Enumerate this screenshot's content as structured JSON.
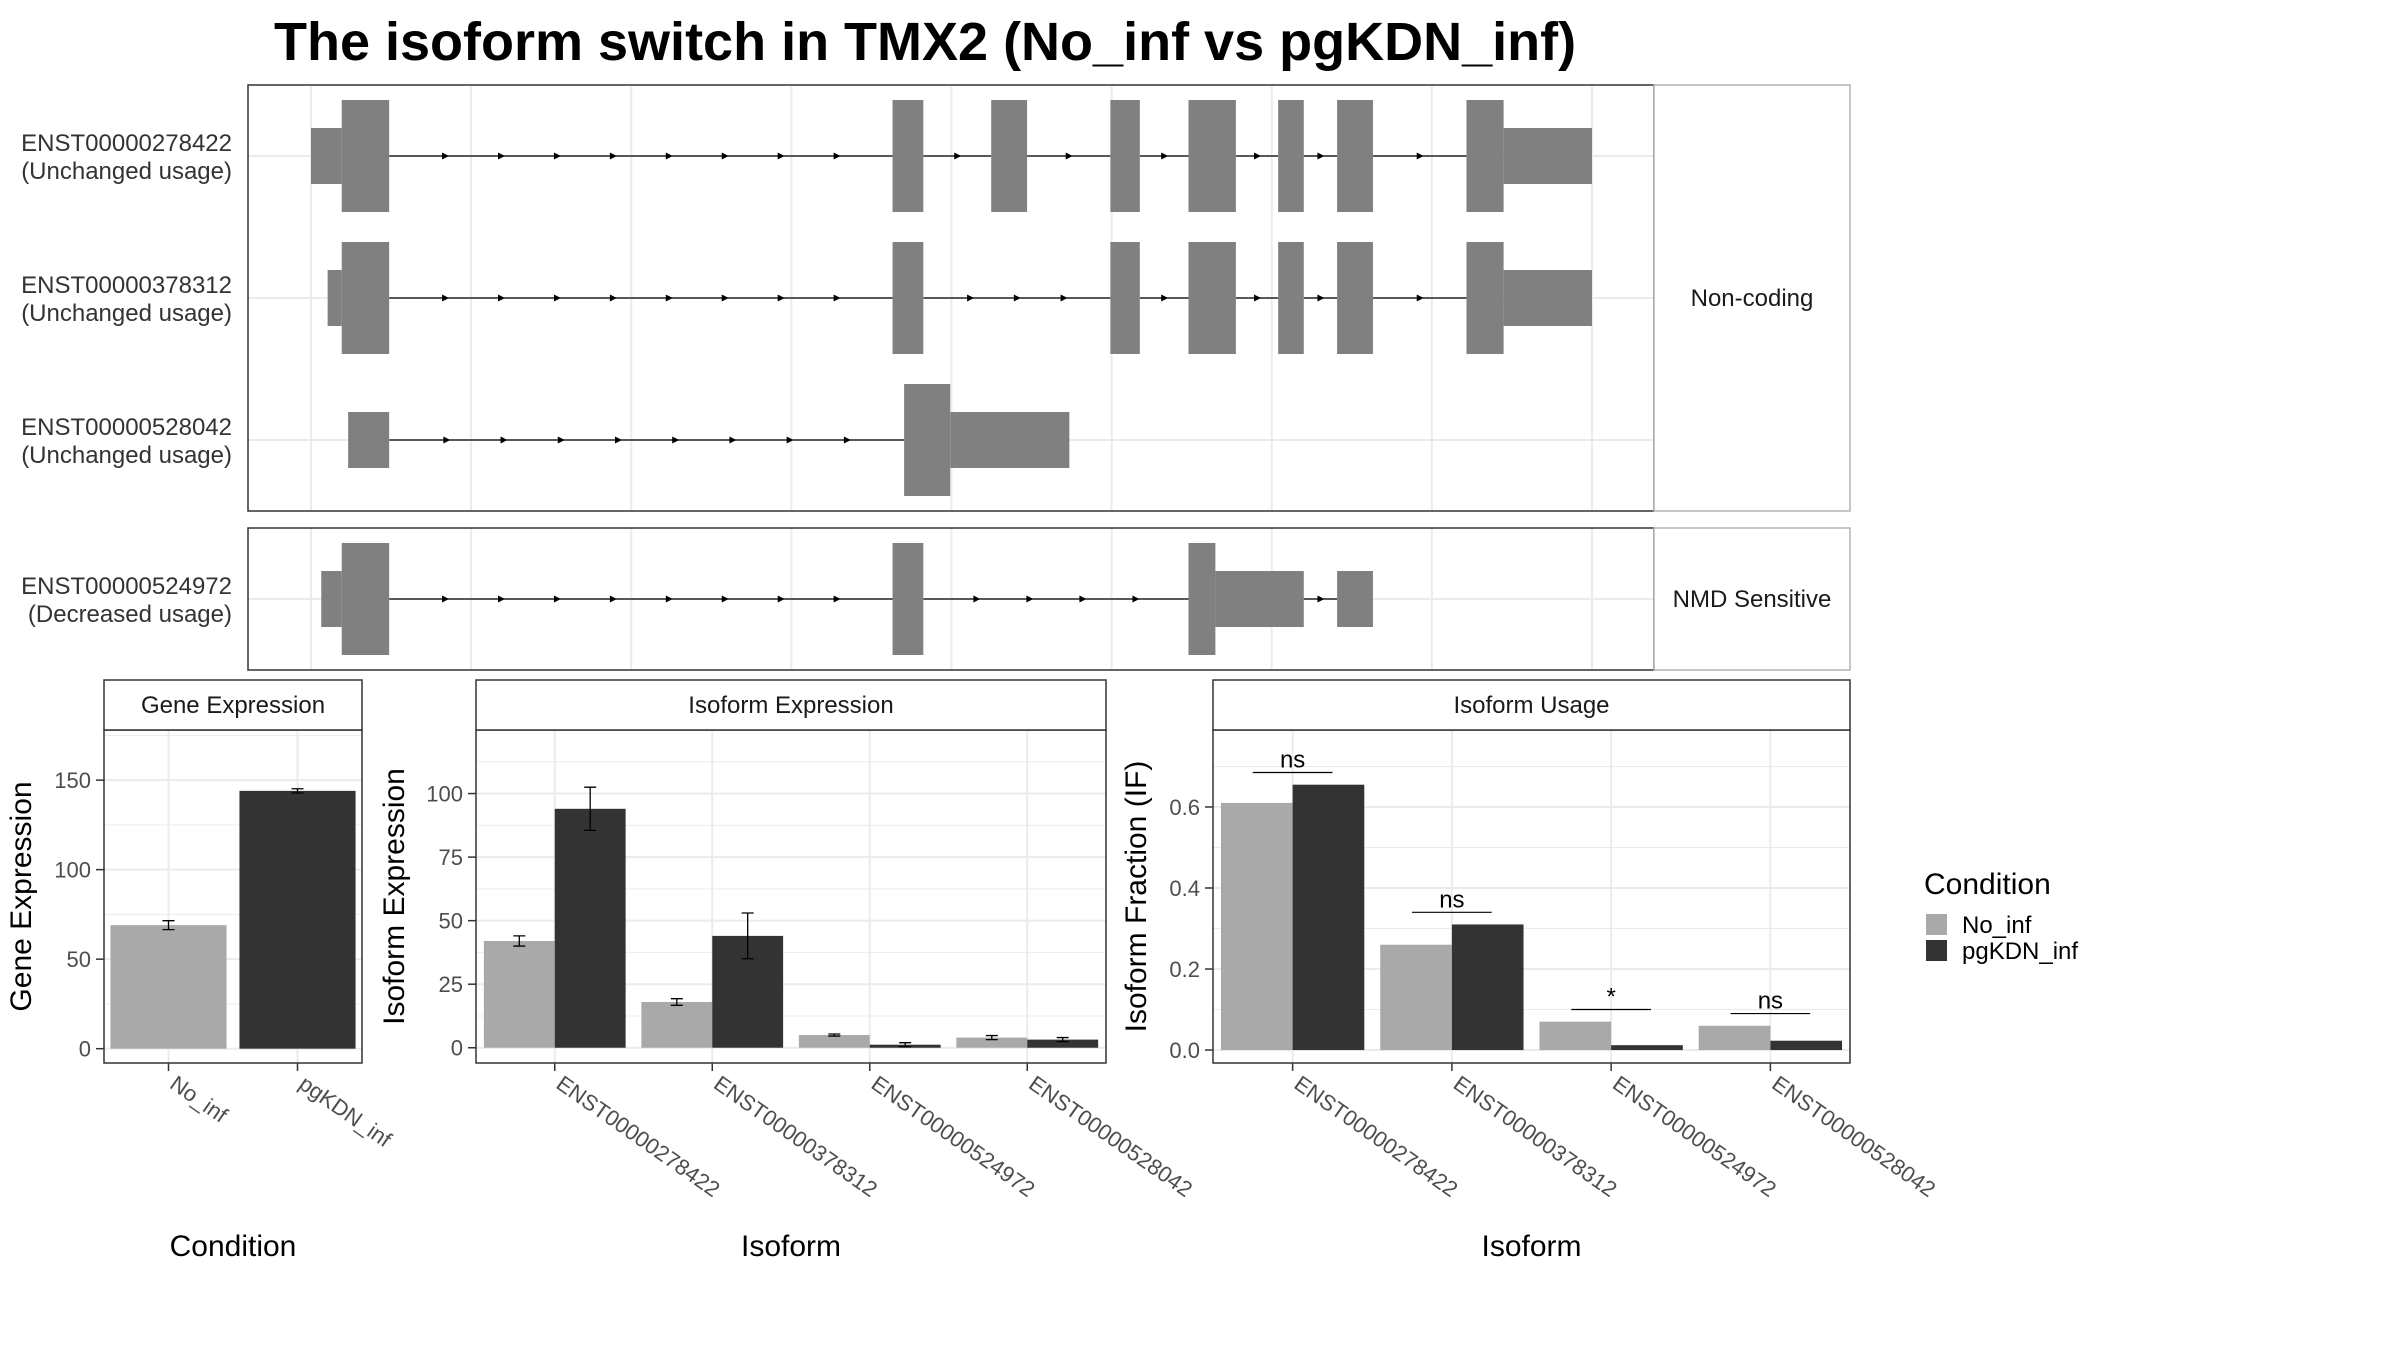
{
  "title": "The isoform switch in TMX2 (No_inf vs pgKDN_inf)",
  "colors": {
    "exon": "#808080",
    "no_inf": "#a9a9a9",
    "pgkdn_inf": "#333333",
    "grid": "#ebebeb",
    "panel_border": "#333333",
    "strip_border": "#b3b3b3"
  },
  "structure": {
    "coord_range": [
      0,
      1000
    ],
    "groups": [
      {
        "label": "Non-coding",
        "transcripts": [
          {
            "id": "ENST00000278422",
            "usage": "(Unchanged usage)",
            "exons": [
              {
                "start": 0,
                "end": 24,
                "type": "utr"
              },
              {
                "start": 24,
                "end": 61,
                "type": "cds"
              },
              {
                "start": 454,
                "end": 478,
                "type": "cds"
              },
              {
                "start": 531,
                "end": 559,
                "type": "cds"
              },
              {
                "start": 624,
                "end": 647,
                "type": "cds"
              },
              {
                "start": 685,
                "end": 722,
                "type": "cds"
              },
              {
                "start": 755,
                "end": 775,
                "type": "cds"
              },
              {
                "start": 801,
                "end": 829,
                "type": "cds"
              },
              {
                "start": 902,
                "end": 931,
                "type": "cds"
              },
              {
                "start": 931,
                "end": 1000,
                "type": "utr"
              }
            ]
          },
          {
            "id": "ENST00000378312",
            "usage": "(Unchanged usage)",
            "exons": [
              {
                "start": 13,
                "end": 24,
                "type": "utr"
              },
              {
                "start": 24,
                "end": 61,
                "type": "cds"
              },
              {
                "start": 454,
                "end": 478,
                "type": "cds"
              },
              {
                "start": 624,
                "end": 647,
                "type": "cds"
              },
              {
                "start": 685,
                "end": 722,
                "type": "cds"
              },
              {
                "start": 755,
                "end": 775,
                "type": "cds"
              },
              {
                "start": 801,
                "end": 829,
                "type": "cds"
              },
              {
                "start": 902,
                "end": 931,
                "type": "cds"
              },
              {
                "start": 931,
                "end": 1000,
                "type": "utr"
              }
            ]
          },
          {
            "id": "ENST00000528042",
            "usage": "(Unchanged usage)",
            "exons": [
              {
                "start": 29,
                "end": 61,
                "type": "utr"
              },
              {
                "start": 463,
                "end": 499,
                "type": "cds"
              },
              {
                "start": 499,
                "end": 592,
                "type": "utr"
              }
            ]
          }
        ]
      },
      {
        "label": "NMD Sensitive",
        "transcripts": [
          {
            "id": "ENST00000524972",
            "usage": "(Decreased usage)",
            "exons": [
              {
                "start": 8,
                "end": 24,
                "type": "utr"
              },
              {
                "start": 24,
                "end": 61,
                "type": "cds"
              },
              {
                "start": 454,
                "end": 478,
                "type": "cds"
              },
              {
                "start": 685,
                "end": 706,
                "type": "cds"
              },
              {
                "start": 706,
                "end": 775,
                "type": "utr"
              },
              {
                "start": 801,
                "end": 829,
                "type": "utr"
              }
            ]
          }
        ]
      }
    ]
  },
  "chart_data": [
    {
      "type": "bar",
      "title": "Gene Expression",
      "xlabel": "Condition",
      "ylabel": "Gene Expression",
      "categories": [
        "No_inf",
        "pgKDN_inf"
      ],
      "values": [
        69,
        144
      ],
      "errors": [
        2.5,
        1.2
      ],
      "yticks": [
        0,
        50,
        100,
        150
      ],
      "ylim": [
        -8,
        178
      ]
    },
    {
      "type": "bar",
      "title": "Isoform Expression",
      "xlabel": "Isoform",
      "ylabel": "Isoform Expression",
      "categories": [
        "ENST00000278422",
        "ENST00000378312",
        "ENST00000524972",
        "ENST00000528042"
      ],
      "series": [
        {
          "name": "No_inf",
          "values": [
            42,
            18,
            5,
            4
          ],
          "errors": [
            2,
            1.3,
            0.4,
            0.8
          ]
        },
        {
          "name": "pgKDN_inf",
          "values": [
            94,
            44,
            1.2,
            3.2
          ],
          "errors": [
            8.5,
            9,
            0.8,
            0.8
          ]
        }
      ],
      "yticks": [
        0,
        25,
        50,
        75,
        100
      ],
      "ylim": [
        -6,
        125
      ]
    },
    {
      "type": "bar",
      "title": "Isoform Usage",
      "xlabel": "Isoform",
      "ylabel": "Isoform Fraction (IF)",
      "categories": [
        "ENST00000278422",
        "ENST00000378312",
        "ENST00000524972",
        "ENST00000528042"
      ],
      "series": [
        {
          "name": "No_inf",
          "values": [
            0.61,
            0.26,
            0.07,
            0.06
          ]
        },
        {
          "name": "pgKDN_inf",
          "values": [
            0.655,
            0.31,
            0.012,
            0.023
          ]
        }
      ],
      "significance": [
        "ns",
        "ns",
        "*",
        "ns"
      ],
      "yticks": [
        0,
        0.2,
        0.4,
        0.6
      ],
      "ytick_labels": [
        "0.0",
        "0.2",
        "0.4",
        "0.6"
      ],
      "ylim": [
        -0.032,
        0.79
      ]
    }
  ],
  "legend": {
    "title": "Condition",
    "items": [
      {
        "label": "No_inf",
        "color": "#a9a9a9"
      },
      {
        "label": "pgKDN_inf",
        "color": "#333333"
      }
    ]
  }
}
